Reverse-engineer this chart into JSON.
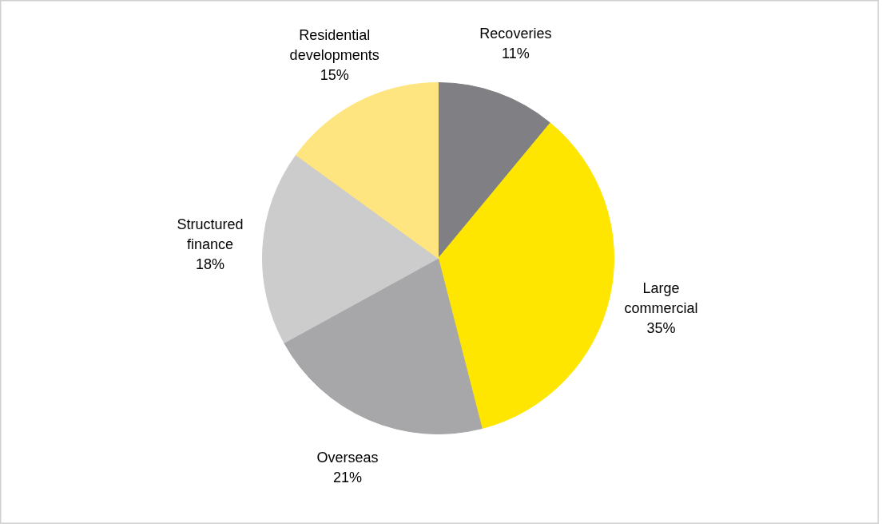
{
  "chart_data": {
    "type": "pie",
    "categories": [
      "Recoveries",
      "Large commercial",
      "Overseas",
      "Structured finance",
      "Residential developments"
    ],
    "values": [
      11,
      35,
      21,
      18,
      15
    ],
    "colors": [
      "#807f83",
      "#ffe600",
      "#a7a7a9",
      "#cccccd",
      "#ffe57f"
    ],
    "value_labels": [
      "11%",
      "35%",
      "21%",
      "18%",
      "15%"
    ]
  }
}
